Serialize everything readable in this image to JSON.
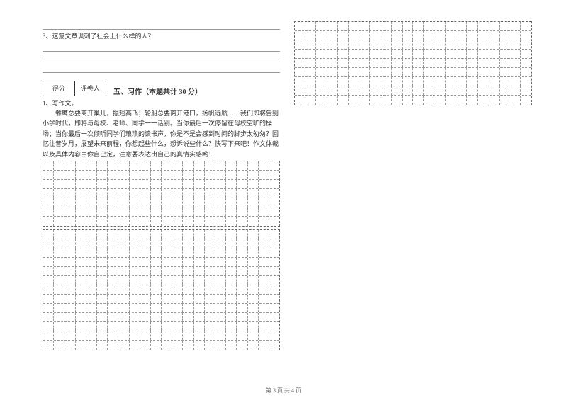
{
  "question3": {
    "text": "3、这篇文章讽刺了社会上什么样的人？"
  },
  "score_box": {
    "label1": "得分",
    "label2": "评卷人"
  },
  "section5": {
    "title": "五、习作（本题共计 30 分）",
    "item1": "1、写作文。",
    "paragraph": "雏鹰总要离开巢儿，振翅高飞；轮船总要离开港口，扬帆远航……我们即将告别小学时代，即将与母校、老师、同学一一话别。当你最后一次停留在母校空旷的操场；当你最后一次倾听同学们琅琅的读书声，你是不是会感到时间的脚步太匆匆？回忆往昔岁月，展望未来前程，你想起些什么，想诉说些什么？快写下来吧！作文体裁以及具体内容由你自己定，注意要表达出自己的真情实感哟！"
  },
  "grid": {
    "cols": 22,
    "left_block1_rows": 7,
    "left_block2_rows": 13,
    "right_block1_rows": 9
  },
  "footer": {
    "text": "第 3 页 共 4 页"
  },
  "colors": {
    "text": "#333333",
    "line": "#999999",
    "dash": "#666666",
    "bg": "#ffffff"
  }
}
